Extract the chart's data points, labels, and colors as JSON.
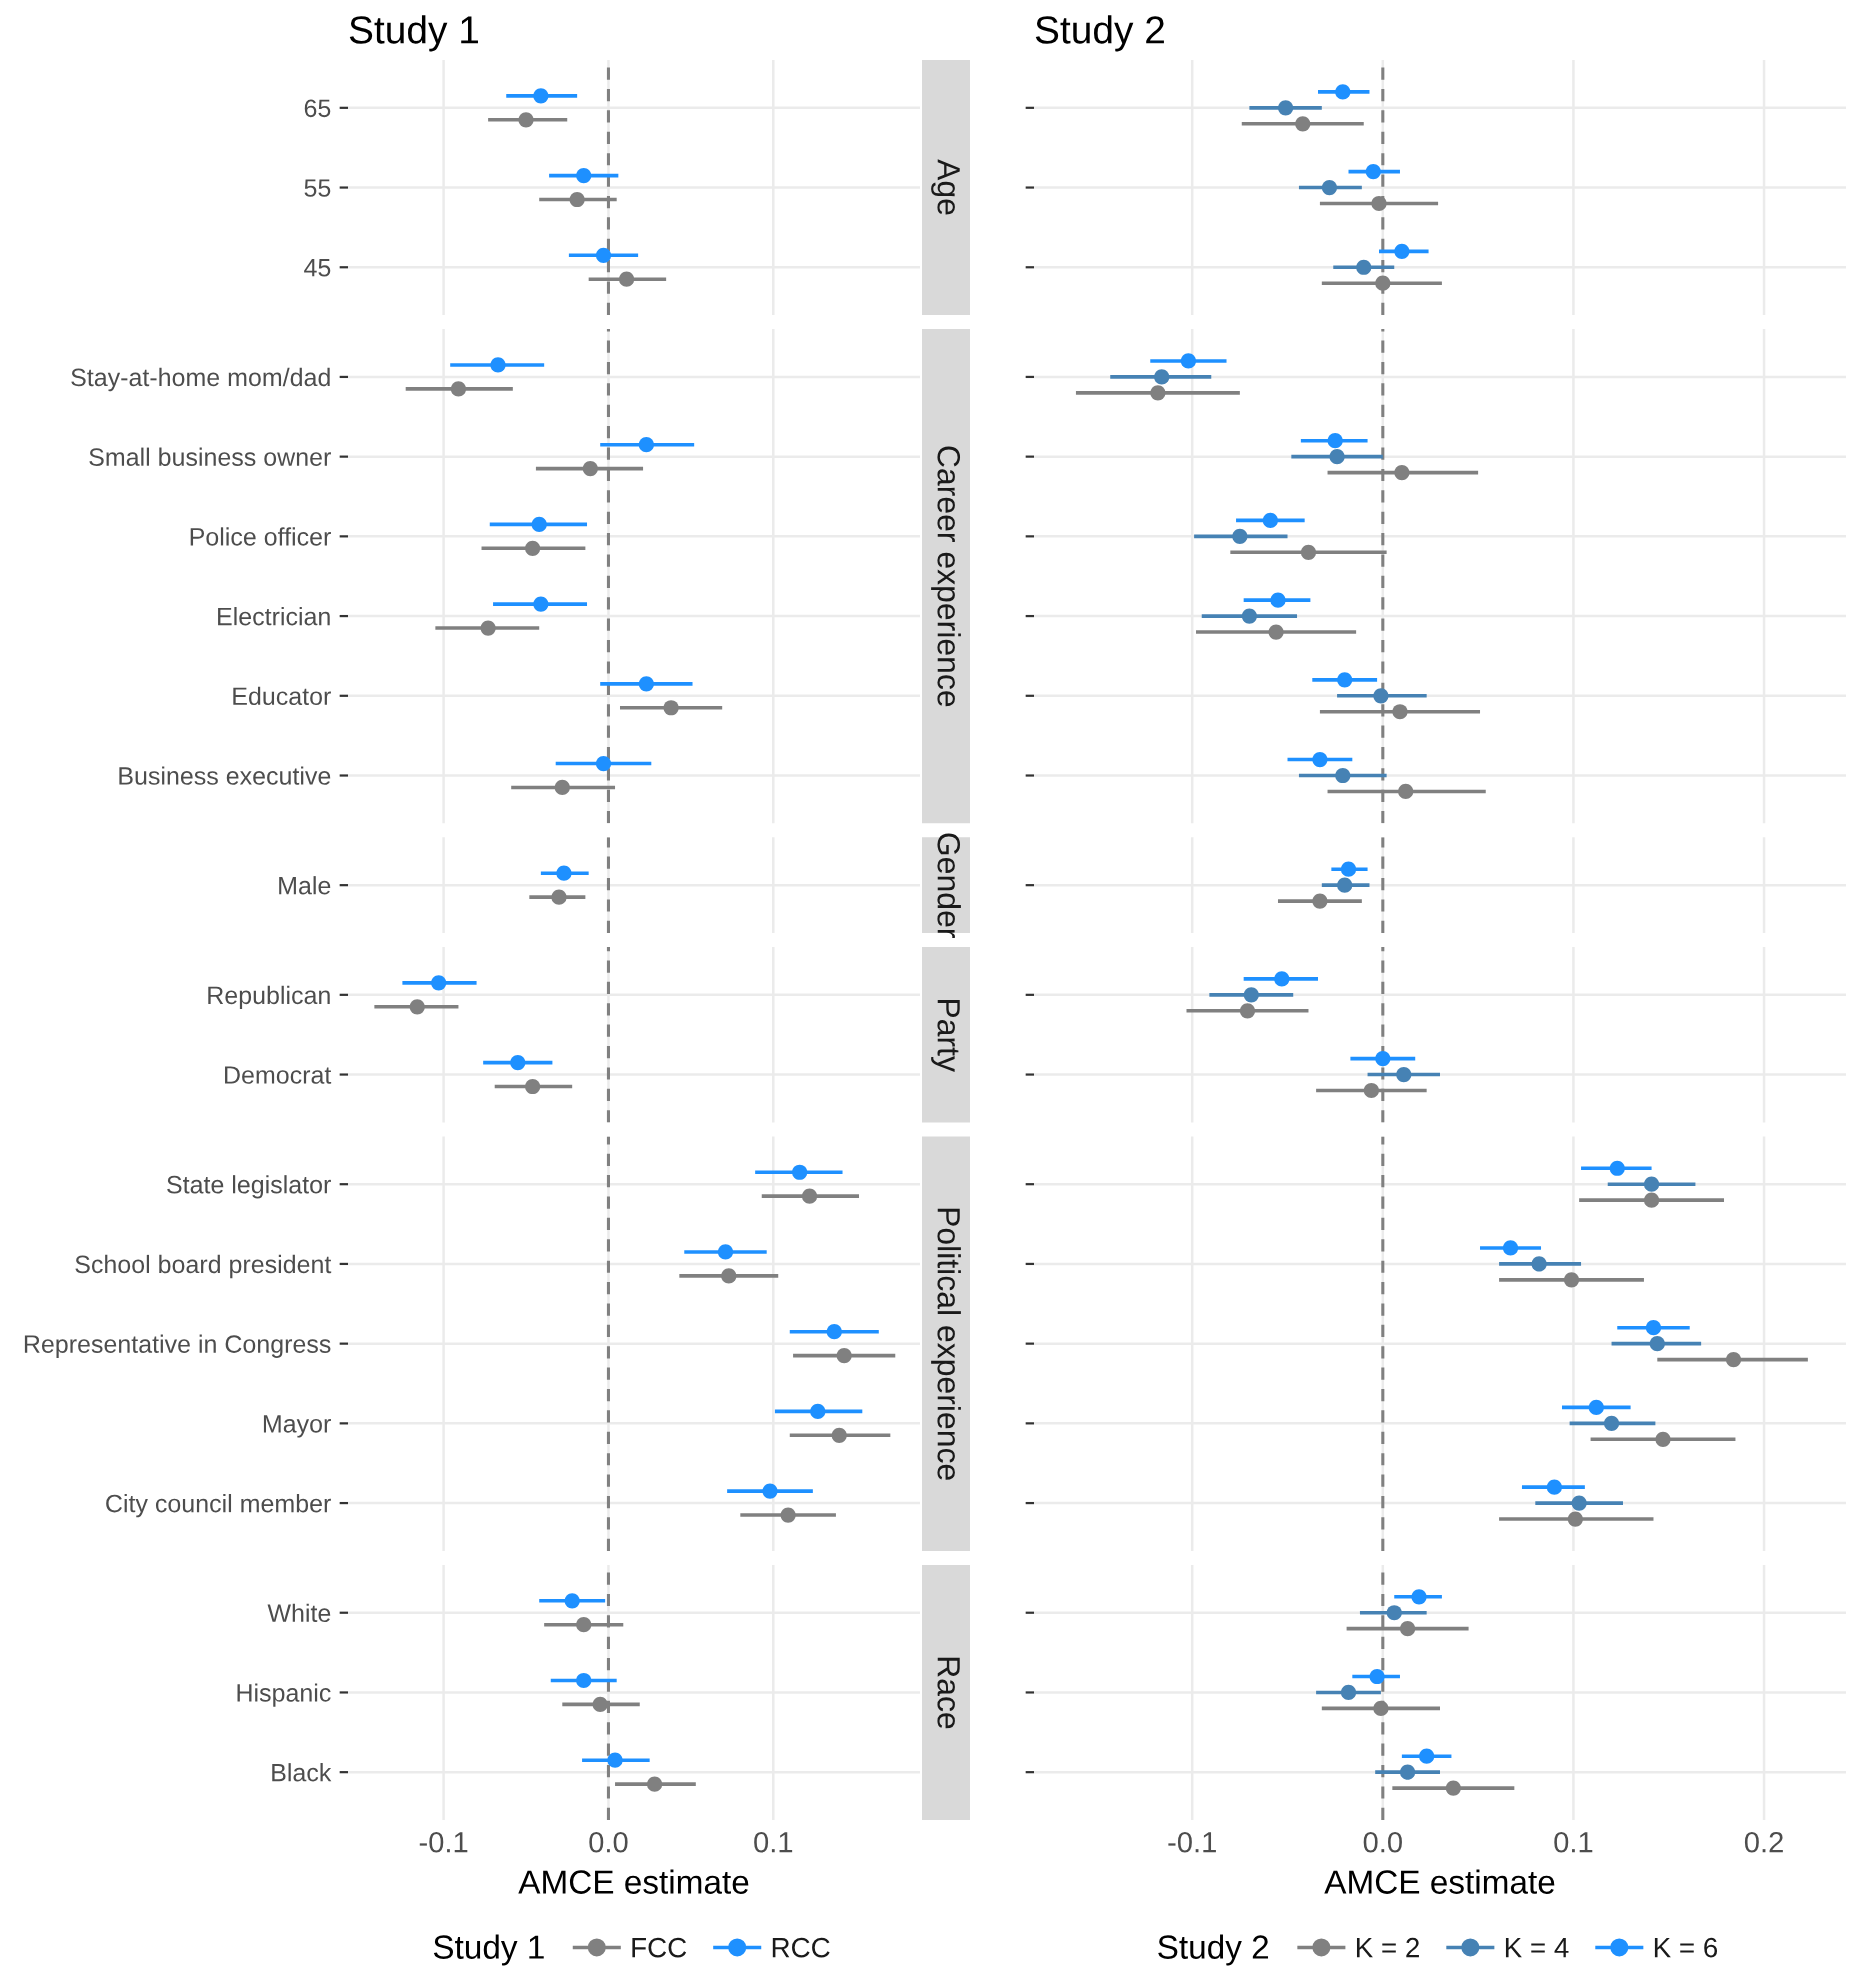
{
  "chart_data": [
    {
      "type": "scatter",
      "orientation": "horizontal",
      "title": "Study 1",
      "y2label": "Age",
      "legend": "bottom",
      "legend_title": "Study 1",
      "categories": [
        "65",
        "55",
        "45"
      ],
      "series": [
        {
          "name": "FCC",
          "color": "#808080",
          "values": [
            -0.05,
            -0.019,
            0.011
          ],
          "errors": [
            [
              -0.073,
              -0.025
            ],
            [
              -0.042,
              0.005
            ],
            [
              -0.012,
              0.035
            ]
          ]
        },
        {
          "name": "RCC",
          "color": "#1e90ff",
          "values": [
            -0.041,
            -0.015,
            -0.003
          ],
          "errors": [
            [
              -0.062,
              -0.019
            ],
            [
              -0.036,
              0.006
            ],
            [
              -0.024,
              0.018
            ]
          ]
        }
      ],
      "xlim": [
        -0.158,
        0.189
      ],
      "xticks": [
        {
          "value": -0.1,
          "label": null
        },
        {
          "value": 0,
          "label": null
        },
        {
          "value": 0.1,
          "label": null
        }
      ],
      "tick_labels": "y",
      "grid": true,
      "marker": "circle",
      "ref_lines": [
        {
          "axis": "x",
          "value": 0,
          "color": "#808080",
          "line_style": "dashed"
        }
      ]
    },
    {
      "type": "scatter",
      "orientation": "horizontal",
      "y2label": "Career experience",
      "categories": [
        "Stay-at-home mom/dad",
        "Small business owner",
        "Police officer",
        "Electrician",
        "Educator",
        "Business executive"
      ],
      "series": [
        {
          "color": "#808080",
          "values": [
            -0.091,
            -0.011,
            -0.046,
            -0.073,
            0.038,
            -0.028
          ],
          "errors": [
            [
              -0.123,
              -0.058
            ],
            [
              -0.044,
              0.021
            ],
            [
              -0.077,
              -0.014
            ],
            [
              -0.105,
              -0.042
            ],
            [
              0.007,
              0.069
            ],
            [
              -0.059,
              0.004
            ]
          ]
        },
        {
          "color": "#1e90ff",
          "values": [
            -0.067,
            0.023,
            -0.042,
            -0.041,
            0.023,
            -0.003
          ],
          "errors": [
            [
              -0.096,
              -0.039
            ],
            [
              -0.005,
              0.052
            ],
            [
              -0.072,
              -0.013
            ],
            [
              -0.07,
              -0.013
            ],
            [
              -0.005,
              0.051
            ],
            [
              -0.032,
              0.026
            ]
          ]
        }
      ],
      "xlim": [
        -0.158,
        0.189
      ],
      "xticks": [
        {
          "value": -0.1,
          "label": null
        },
        {
          "value": 0,
          "label": null
        },
        {
          "value": 0.1,
          "label": null
        }
      ],
      "tick_labels": "y",
      "grid": true,
      "marker": "circle",
      "ref_lines": [
        {
          "axis": "x",
          "value": 0,
          "color": "#808080",
          "line_style": "dashed"
        }
      ]
    },
    {
      "type": "scatter",
      "orientation": "horizontal",
      "y2label": "Gender",
      "categories": [
        "Male"
      ],
      "series": [
        {
          "color": "#808080",
          "values": [
            -0.03
          ],
          "errors": [
            [
              -0.048,
              -0.014
            ]
          ]
        },
        {
          "color": "#1e90ff",
          "values": [
            -0.027
          ],
          "errors": [
            [
              -0.041,
              -0.012
            ]
          ]
        }
      ],
      "xlim": [
        -0.158,
        0.189
      ],
      "xticks": [
        {
          "value": -0.1,
          "label": null
        },
        {
          "value": 0,
          "label": null
        },
        {
          "value": 0.1,
          "label": null
        }
      ],
      "tick_labels": "y",
      "grid": true,
      "marker": "circle",
      "ref_lines": [
        {
          "axis": "x",
          "value": 0,
          "color": "#808080",
          "line_style": "dashed"
        }
      ]
    },
    {
      "type": "scatter",
      "orientation": "horizontal",
      "y2label": "Party",
      "categories": [
        "Republican",
        "Democrat"
      ],
      "series": [
        {
          "color": "#808080",
          "values": [
            -0.116,
            -0.046
          ],
          "errors": [
            [
              -0.142,
              -0.091
            ],
            [
              -0.069,
              -0.022
            ]
          ]
        },
        {
          "color": "#1e90ff",
          "values": [
            -0.103,
            -0.055
          ],
          "errors": [
            [
              -0.125,
              -0.08
            ],
            [
              -0.076,
              -0.034
            ]
          ]
        }
      ],
      "xlim": [
        -0.158,
        0.189
      ],
      "xticks": [
        {
          "value": -0.1,
          "label": null
        },
        {
          "value": 0,
          "label": null
        },
        {
          "value": 0.1,
          "label": null
        }
      ],
      "tick_labels": "y",
      "grid": true,
      "marker": "circle",
      "ref_lines": [
        {
          "axis": "x",
          "value": 0,
          "color": "#808080",
          "line_style": "dashed"
        }
      ]
    },
    {
      "type": "scatter",
      "orientation": "horizontal",
      "y2label": "Political experience",
      "categories": [
        "State legislator",
        "School board president",
        "Representative in Congress",
        "Mayor",
        "City council member"
      ],
      "series": [
        {
          "color": "#808080",
          "values": [
            0.122,
            0.073,
            0.143,
            0.14,
            0.109
          ],
          "errors": [
            [
              0.093,
              0.152
            ],
            [
              0.043,
              0.103
            ],
            [
              0.112,
              0.174
            ],
            [
              0.11,
              0.171
            ],
            [
              0.08,
              0.138
            ]
          ]
        },
        {
          "color": "#1e90ff",
          "values": [
            0.116,
            0.071,
            0.137,
            0.127,
            0.098
          ],
          "errors": [
            [
              0.089,
              0.142
            ],
            [
              0.046,
              0.096
            ],
            [
              0.11,
              0.164
            ],
            [
              0.101,
              0.154
            ],
            [
              0.072,
              0.124
            ]
          ]
        }
      ],
      "xlim": [
        -0.158,
        0.189
      ],
      "xticks": [
        {
          "value": -0.1,
          "label": null
        },
        {
          "value": 0,
          "label": null
        },
        {
          "value": 0.1,
          "label": null
        }
      ],
      "tick_labels": "y",
      "grid": true,
      "marker": "circle",
      "ref_lines": [
        {
          "axis": "x",
          "value": 0,
          "color": "#808080",
          "line_style": "dashed"
        }
      ]
    },
    {
      "type": "scatter",
      "orientation": "horizontal",
      "y2label": "Race",
      "xlabel": "AMCE estimate",
      "categories": [
        "White",
        "Hispanic",
        "Black"
      ],
      "series": [
        {
          "color": "#808080",
          "values": [
            -0.015,
            -0.005,
            0.028
          ],
          "errors": [
            [
              -0.039,
              0.009
            ],
            [
              -0.028,
              0.019
            ],
            [
              0.004,
              0.053
            ]
          ]
        },
        {
          "color": "#1e90ff",
          "values": [
            -0.022,
            -0.015,
            0.004
          ],
          "errors": [
            [
              -0.042,
              -0.002
            ],
            [
              -0.035,
              0.005
            ],
            [
              -0.016,
              0.025
            ]
          ]
        }
      ],
      "xlim": [
        -0.158,
        0.189
      ],
      "xticks": [
        -0.1,
        {
          "value": 0,
          "label": "0.0"
        },
        0.1
      ],
      "grid": true,
      "marker": "circle",
      "ref_lines": [
        {
          "axis": "x",
          "value": 0,
          "color": "#808080",
          "line_style": "dashed"
        }
      ]
    },
    {
      "type": "scatter",
      "orientation": "horizontal",
      "title": "Study 2",
      "legend": "bottom",
      "legend_title": "Study 2",
      "categories": [
        null,
        null,
        null
      ],
      "series": [
        {
          "name": "K = 2",
          "color": "#808080",
          "values": [
            -0.042,
            -0.002,
            0.0
          ],
          "errors": [
            [
              -0.074,
              -0.01
            ],
            [
              -0.033,
              0.029
            ],
            [
              -0.032,
              0.031
            ]
          ]
        },
        {
          "name": "K = 4",
          "color": "#4682b4",
          "values": [
            -0.051,
            -0.028,
            -0.01
          ],
          "errors": [
            [
              -0.07,
              -0.032
            ],
            [
              -0.044,
              -0.011
            ],
            [
              -0.026,
              0.006
            ]
          ]
        },
        {
          "name": "K = 6",
          "color": "#1e90ff",
          "values": [
            -0.021,
            -0.005,
            0.01
          ],
          "errors": [
            [
              -0.034,
              -0.007
            ],
            [
              -0.018,
              0.009
            ],
            [
              -0.002,
              0.024
            ]
          ]
        }
      ],
      "xlim": [
        -0.183,
        0.243
      ],
      "xticks": [
        {
          "value": -0.1,
          "label": null
        },
        {
          "value": 0,
          "label": null
        },
        {
          "value": 0.1,
          "label": null
        },
        {
          "value": 0.2,
          "label": null
        }
      ],
      "tick_labels": false,
      "grid": true,
      "marker": "circle",
      "ref_lines": [
        {
          "axis": "x",
          "value": 0,
          "color": "#808080",
          "line_style": "dashed"
        }
      ]
    },
    {
      "type": "scatter",
      "orientation": "horizontal",
      "categories": [
        null,
        null,
        null,
        null,
        null,
        null
      ],
      "series": [
        {
          "color": "#808080",
          "values": [
            -0.118,
            0.01,
            -0.039,
            -0.056,
            0.009,
            0.012
          ],
          "errors": [
            [
              -0.161,
              -0.075
            ],
            [
              -0.029,
              0.05
            ],
            [
              -0.08,
              0.002
            ],
            [
              -0.098,
              -0.014
            ],
            [
              -0.033,
              0.051
            ],
            [
              -0.029,
              0.054
            ]
          ]
        },
        {
          "color": "#4682b4",
          "values": [
            -0.116,
            -0.024,
            -0.075,
            -0.07,
            -0.001,
            -0.021
          ],
          "errors": [
            [
              -0.143,
              -0.09
            ],
            [
              -0.048,
              0.0
            ],
            [
              -0.099,
              -0.05
            ],
            [
              -0.095,
              -0.045
            ],
            [
              -0.024,
              0.023
            ],
            [
              -0.044,
              0.002
            ]
          ]
        },
        {
          "color": "#1e90ff",
          "values": [
            -0.102,
            -0.025,
            -0.059,
            -0.055,
            -0.02,
            -0.033
          ],
          "errors": [
            [
              -0.122,
              -0.082
            ],
            [
              -0.043,
              -0.008
            ],
            [
              -0.077,
              -0.041
            ],
            [
              -0.073,
              -0.038
            ],
            [
              -0.037,
              -0.003
            ],
            [
              -0.05,
              -0.016
            ]
          ]
        }
      ],
      "xlim": [
        -0.183,
        0.243
      ],
      "xticks": [
        {
          "value": -0.1,
          "label": null
        },
        {
          "value": 0,
          "label": null
        },
        {
          "value": 0.1,
          "label": null
        },
        {
          "value": 0.2,
          "label": null
        }
      ],
      "tick_labels": false,
      "grid": true,
      "marker": "circle",
      "ref_lines": [
        {
          "axis": "x",
          "value": 0,
          "color": "#808080",
          "line_style": "dashed"
        }
      ]
    },
    {
      "type": "scatter",
      "orientation": "horizontal",
      "categories": [
        null
      ],
      "series": [
        {
          "color": "#808080",
          "values": [
            -0.033
          ],
          "errors": [
            [
              -0.055,
              -0.011
            ]
          ]
        },
        {
          "color": "#4682b4",
          "values": [
            -0.02
          ],
          "errors": [
            [
              -0.032,
              -0.007
            ]
          ]
        },
        {
          "color": "#1e90ff",
          "values": [
            -0.018
          ],
          "errors": [
            [
              -0.027,
              -0.008
            ]
          ]
        }
      ],
      "xlim": [
        -0.183,
        0.243
      ],
      "xticks": [
        {
          "value": -0.1,
          "label": null
        },
        {
          "value": 0,
          "label": null
        },
        {
          "value": 0.1,
          "label": null
        },
        {
          "value": 0.2,
          "label": null
        }
      ],
      "tick_labels": false,
      "grid": true,
      "marker": "circle",
      "ref_lines": [
        {
          "axis": "x",
          "value": 0,
          "color": "#808080",
          "line_style": "dashed"
        }
      ]
    },
    {
      "type": "scatter",
      "orientation": "horizontal",
      "categories": [
        null,
        null
      ],
      "series": [
        {
          "color": "#808080",
          "values": [
            -0.071,
            -0.006
          ],
          "errors": [
            [
              -0.103,
              -0.039
            ],
            [
              -0.035,
              0.023
            ]
          ]
        },
        {
          "color": "#4682b4",
          "values": [
            -0.069,
            0.011
          ],
          "errors": [
            [
              -0.091,
              -0.047
            ],
            [
              -0.008,
              0.03
            ]
          ]
        },
        {
          "color": "#1e90ff",
          "values": [
            -0.053,
            0.0
          ],
          "errors": [
            [
              -0.073,
              -0.034
            ],
            [
              -0.017,
              0.017
            ]
          ]
        }
      ],
      "xlim": [
        -0.183,
        0.243
      ],
      "xticks": [
        {
          "value": -0.1,
          "label": null
        },
        {
          "value": 0,
          "label": null
        },
        {
          "value": 0.1,
          "label": null
        },
        {
          "value": 0.2,
          "label": null
        }
      ],
      "tick_labels": false,
      "grid": true,
      "marker": "circle",
      "ref_lines": [
        {
          "axis": "x",
          "value": 0,
          "color": "#808080",
          "line_style": "dashed"
        }
      ]
    },
    {
      "type": "scatter",
      "orientation": "horizontal",
      "categories": [
        null,
        null,
        null,
        null,
        null
      ],
      "series": [
        {
          "color": "#808080",
          "values": [
            0.141,
            0.099,
            0.184,
            0.147,
            0.101
          ],
          "errors": [
            [
              0.103,
              0.179
            ],
            [
              0.061,
              0.137
            ],
            [
              0.144,
              0.223
            ],
            [
              0.109,
              0.185
            ],
            [
              0.061,
              0.142
            ]
          ]
        },
        {
          "color": "#4682b4",
          "values": [
            0.141,
            0.082,
            0.144,
            0.12,
            0.103
          ],
          "errors": [
            [
              0.118,
              0.164
            ],
            [
              0.061,
              0.104
            ],
            [
              0.12,
              0.167
            ],
            [
              0.098,
              0.143
            ],
            [
              0.08,
              0.126
            ]
          ]
        },
        {
          "color": "#1e90ff",
          "values": [
            0.123,
            0.067,
            0.142,
            0.112,
            0.09
          ],
          "errors": [
            [
              0.104,
              0.141
            ],
            [
              0.051,
              0.083
            ],
            [
              0.123,
              0.161
            ],
            [
              0.094,
              0.13
            ],
            [
              0.073,
              0.106
            ]
          ]
        }
      ],
      "xlim": [
        -0.183,
        0.243
      ],
      "xticks": [
        {
          "value": -0.1,
          "label": null
        },
        {
          "value": 0,
          "label": null
        },
        {
          "value": 0.1,
          "label": null
        },
        {
          "value": 0.2,
          "label": null
        }
      ],
      "tick_labels": false,
      "grid": true,
      "marker": "circle",
      "ref_lines": [
        {
          "axis": "x",
          "value": 0,
          "color": "#808080",
          "line_style": "dashed"
        }
      ]
    },
    {
      "type": "scatter",
      "orientation": "horizontal",
      "xlabel": "AMCE estimate",
      "categories": [
        null,
        null,
        null
      ],
      "series": [
        {
          "color": "#808080",
          "values": [
            0.013,
            -0.001,
            0.037
          ],
          "errors": [
            [
              -0.019,
              0.045
            ],
            [
              -0.032,
              0.03
            ],
            [
              0.005,
              0.069
            ]
          ]
        },
        {
          "color": "#4682b4",
          "values": [
            0.006,
            -0.018,
            0.013
          ],
          "errors": [
            [
              -0.012,
              0.023
            ],
            [
              -0.035,
              -0.001
            ],
            [
              -0.004,
              0.03
            ]
          ]
        },
        {
          "color": "#1e90ff",
          "values": [
            0.019,
            -0.003,
            0.023
          ],
          "errors": [
            [
              0.006,
              0.031
            ],
            [
              -0.016,
              0.009
            ],
            [
              0.01,
              0.036
            ]
          ]
        }
      ],
      "xlim": [
        -0.183,
        0.243
      ],
      "xticks": [
        -0.1,
        {
          "value": 0,
          "label": "0.0"
        },
        0.1,
        0.2
      ],
      "tick_labels": "x",
      "grid": true,
      "marker": "circle",
      "ref_lines": [
        {
          "axis": "x",
          "value": 0,
          "color": "#808080",
          "line_style": "dashed"
        }
      ]
    }
  ]
}
